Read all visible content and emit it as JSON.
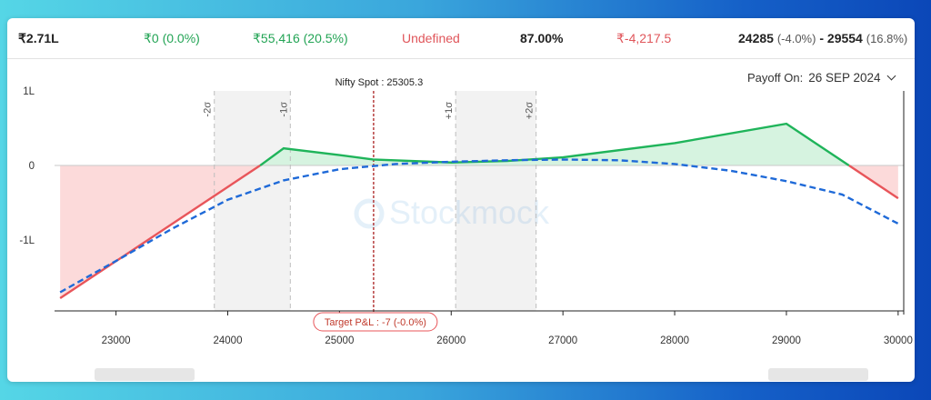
{
  "stats": {
    "value1": "₹2.71L",
    "value2": "₹0 (0.0%)",
    "value3": "₹55,416 (20.5%)",
    "value4": "Undefined",
    "value5": "87.00%",
    "value6": "₹-4,217.5",
    "range_low": "24285",
    "range_low_pct": "(-4.0%)",
    "range_sep": " - ",
    "range_high": "29554",
    "range_high_pct": "(16.8%)"
  },
  "payoff": {
    "label": "Payoff On:",
    "date": "26 SEP 2024"
  },
  "watermark": "Stockmock",
  "colors": {
    "profit_line": "#1fb45a",
    "loss_line": "#e8555a",
    "profit_fill": "#d6f3e0",
    "loss_fill": "#fcdada",
    "target_line": "#1f6ad8",
    "spot_line": "#b03030",
    "sigma_band": "#f2f2f2"
  },
  "chart_data": {
    "type": "area",
    "xlim": [
      22450,
      30050
    ],
    "ylim": [
      -1.95,
      1.0
    ],
    "x_ticks": [
      23000,
      24000,
      25000,
      26000,
      27000,
      28000,
      29000,
      30000
    ],
    "y_ticks": [
      {
        "value": 1,
        "label": "1L"
      },
      {
        "value": 0,
        "label": "0"
      },
      {
        "value": -1,
        "label": "-1L"
      }
    ],
    "spot": {
      "label": "Nifty Spot : 25305.3",
      "value": 25305.3
    },
    "target_label": "Target P&L : -7 (-0.0%)",
    "sigma_lines": [
      {
        "label": "-2σ",
        "value": 23880
      },
      {
        "label": "-1σ",
        "value": 24560
      },
      {
        "label": "+1σ",
        "value": 26040
      },
      {
        "label": "+2σ",
        "value": 26760
      }
    ],
    "sigma_bands": [
      [
        23880,
        24560
      ],
      [
        26040,
        26760
      ]
    ],
    "expiry_payoff": [
      [
        22500,
        -1.78
      ],
      [
        24290,
        0.0
      ],
      [
        24500,
        0.23
      ],
      [
        25000,
        0.14
      ],
      [
        25300,
        0.08
      ],
      [
        26000,
        0.04
      ],
      [
        26500,
        0.06
      ],
      [
        27000,
        0.11
      ],
      [
        28000,
        0.3
      ],
      [
        29000,
        0.56
      ],
      [
        29560,
        0.0
      ],
      [
        30000,
        -0.44
      ]
    ],
    "target_payoff": [
      [
        22500,
        -1.7
      ],
      [
        23000,
        -1.28
      ],
      [
        23500,
        -0.85
      ],
      [
        24000,
        -0.46
      ],
      [
        24500,
        -0.2
      ],
      [
        25000,
        -0.05
      ],
      [
        25500,
        0.02
      ],
      [
        26000,
        0.05
      ],
      [
        26500,
        0.07
      ],
      [
        27000,
        0.08
      ],
      [
        27500,
        0.07
      ],
      [
        28000,
        0.02
      ],
      [
        28500,
        -0.07
      ],
      [
        29000,
        -0.21
      ],
      [
        29500,
        -0.39
      ],
      [
        30000,
        -0.78
      ]
    ]
  }
}
